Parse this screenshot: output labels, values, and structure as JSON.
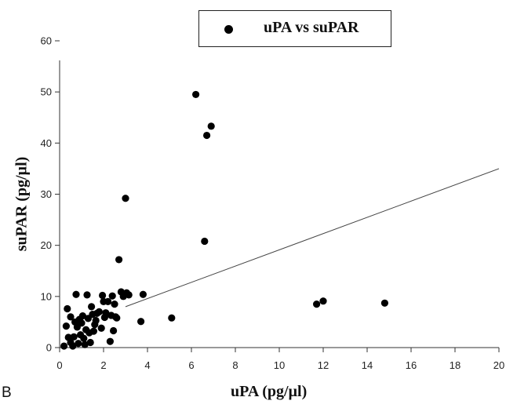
{
  "chart_data": {
    "type": "scatter",
    "title": "",
    "xlabel": "uPA (pg/µl)",
    "ylabel": "suPAR (pg/µl)",
    "panel_label": "B",
    "legend": {
      "label": "uPA vs suPAR",
      "placement": "top-center"
    },
    "xlim": [
      0,
      20
    ],
    "ylim": [
      0,
      60
    ],
    "x_ticks": [
      0,
      2,
      4,
      6,
      8,
      10,
      12,
      14,
      16,
      18,
      20
    ],
    "y_ticks": [
      0,
      10,
      20,
      30,
      40,
      50,
      60
    ],
    "grid": false,
    "marker_color": "#000000",
    "series": [
      {
        "name": "uPA vs suPAR",
        "points": [
          [
            0.2,
            0.3
          ],
          [
            0.3,
            4.2
          ],
          [
            0.35,
            7.6
          ],
          [
            0.4,
            2.0
          ],
          [
            0.5,
            6.0
          ],
          [
            0.5,
            1.0
          ],
          [
            0.6,
            0.3
          ],
          [
            0.65,
            2.1
          ],
          [
            0.7,
            5.0
          ],
          [
            0.75,
            10.4
          ],
          [
            0.8,
            4.0
          ],
          [
            0.85,
            0.8
          ],
          [
            0.9,
            5.5
          ],
          [
            0.95,
            2.5
          ],
          [
            1.0,
            4.8
          ],
          [
            1.05,
            6.2
          ],
          [
            1.1,
            1.8
          ],
          [
            1.15,
            0.6
          ],
          [
            1.2,
            3.5
          ],
          [
            1.25,
            10.3
          ],
          [
            1.3,
            5.7
          ],
          [
            1.35,
            2.9
          ],
          [
            1.4,
            1.0
          ],
          [
            1.45,
            8.0
          ],
          [
            1.5,
            6.5
          ],
          [
            1.55,
            3.2
          ],
          [
            1.6,
            4.5
          ],
          [
            1.65,
            5.3
          ],
          [
            1.7,
            6.7
          ],
          [
            1.8,
            7.0
          ],
          [
            1.9,
            3.8
          ],
          [
            1.95,
            10.2
          ],
          [
            2.0,
            9.0
          ],
          [
            2.05,
            5.9
          ],
          [
            2.1,
            6.8
          ],
          [
            2.2,
            9.0
          ],
          [
            2.3,
            1.2
          ],
          [
            2.35,
            6.3
          ],
          [
            2.4,
            10.1
          ],
          [
            2.45,
            3.3
          ],
          [
            2.5,
            8.5
          ],
          [
            2.55,
            6.0
          ],
          [
            2.6,
            5.8
          ],
          [
            2.7,
            17.2
          ],
          [
            2.8,
            10.9
          ],
          [
            2.9,
            10.0
          ],
          [
            3.0,
            29.2
          ],
          [
            3.05,
            10.7
          ],
          [
            3.15,
            10.3
          ],
          [
            3.7,
            5.1
          ],
          [
            3.8,
            10.4
          ],
          [
            5.1,
            5.8
          ],
          [
            6.2,
            49.5
          ],
          [
            6.6,
            20.8
          ],
          [
            6.7,
            41.5
          ],
          [
            6.9,
            43.3
          ],
          [
            11.7,
            8.5
          ],
          [
            12.0,
            9.1
          ],
          [
            14.8,
            8.7
          ]
        ]
      }
    ],
    "regression_line": {
      "x": [
        3.0,
        20.0
      ],
      "y": [
        8.0,
        35.0
      ]
    }
  }
}
